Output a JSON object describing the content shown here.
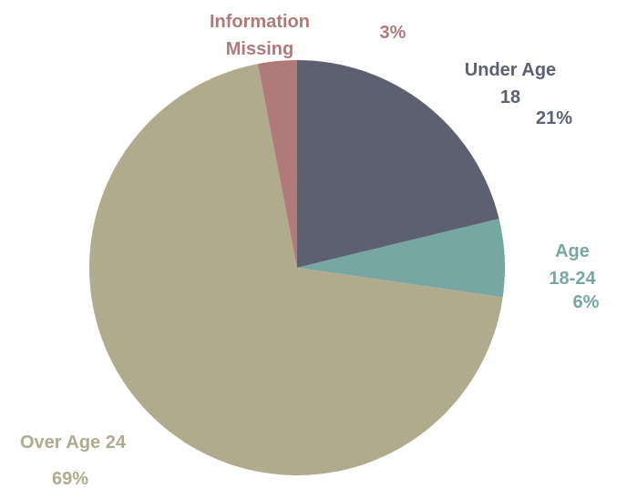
{
  "chart_data": {
    "type": "pie",
    "categories": [
      "Under Age 18",
      "Age 18-24",
      "Over Age 24",
      "Information Missing"
    ],
    "values": [
      21,
      6,
      69,
      3
    ],
    "value_labels": [
      "21%",
      "6%",
      "69%",
      "3%"
    ],
    "colors": [
      "#5d6070",
      "#76a7a2",
      "#b0ab8d",
      "#b07a7a"
    ]
  }
}
